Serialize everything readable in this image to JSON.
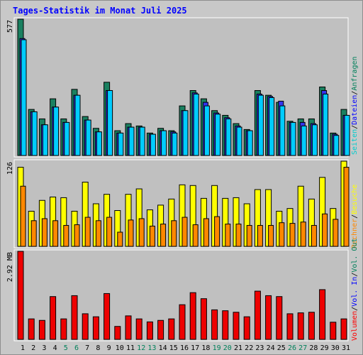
{
  "chart_data": [
    {
      "type": "bar",
      "title": "Tages-Statistik im Monat Juli 2025",
      "x": [
        "1",
        "2",
        "3",
        "4",
        "5",
        "6",
        "7",
        "8",
        "9",
        "10",
        "11",
        "12",
        "13",
        "14",
        "15",
        "16",
        "17",
        "18",
        "19",
        "20",
        "21",
        "22",
        "23",
        "24",
        "25",
        "26",
        "27",
        "28",
        "29",
        "30",
        "31"
      ],
      "weekend_days": [
        "5",
        "6",
        "12",
        "13",
        "19",
        "20",
        "26",
        "27"
      ],
      "ylim": [
        0,
        577
      ],
      "y_tick_label": "577",
      "series": [
        {
          "name": "Anfragen",
          "color": "#1a8060",
          "values": [
            577,
            195,
            155,
            240,
            155,
            280,
            165,
            115,
            310,
            105,
            135,
            125,
            95,
            115,
            105,
            210,
            275,
            240,
            190,
            170,
            135,
            110,
            275,
            255,
            225,
            145,
            155,
            155,
            290,
            95,
            195
          ]
        },
        {
          "name": "Dateien",
          "color": "#3333ee",
          "values": [
            495,
            185,
            130,
            205,
            140,
            255,
            150,
            100,
            275,
            95,
            120,
            120,
            90,
            105,
            100,
            190,
            265,
            225,
            180,
            160,
            125,
            105,
            260,
            250,
            230,
            140,
            140,
            135,
            275,
            90,
            170
          ]
        },
        {
          "name": "Seiten",
          "color": "#00ccff",
          "values": [
            490,
            185,
            130,
            205,
            140,
            255,
            150,
            100,
            275,
            95,
            120,
            120,
            90,
            105,
            95,
            190,
            260,
            210,
            175,
            155,
            120,
            105,
            255,
            245,
            210,
            140,
            125,
            130,
            260,
            85,
            170
          ]
        }
      ]
    },
    {
      "type": "bar",
      "ylim": [
        0,
        126
      ],
      "y_tick_label": "126",
      "series": [
        {
          "name": "Besuche",
          "color": "#ffff00",
          "values": [
            117,
            52,
            68,
            73,
            72,
            52,
            95,
            63,
            77,
            53,
            77,
            85,
            54,
            61,
            70,
            91,
            90,
            71,
            90,
            71,
            72,
            63,
            84,
            84,
            52,
            56,
            89,
            70,
            102,
            56,
            126
          ]
        },
        {
          "name": "Rechner",
          "color": "#ff8800",
          "values": [
            89,
            38,
            41,
            38,
            31,
            32,
            43,
            38,
            43,
            21,
            39,
            41,
            30,
            33,
            38,
            43,
            32,
            41,
            44,
            33,
            33,
            31,
            31,
            31,
            35,
            34,
            36,
            31,
            48,
            40,
            117
          ]
        }
      ]
    },
    {
      "type": "bar",
      "ylim": [
        0,
        2.92
      ],
      "y_tick_label": "2.92 MB",
      "series": [
        {
          "name": "Volumen",
          "color": "#ee0000",
          "values": [
            2.92,
            0.68,
            0.63,
            1.42,
            0.68,
            1.45,
            0.85,
            0.75,
            1.52,
            0.43,
            0.78,
            0.68,
            0.58,
            0.63,
            0.68,
            1.15,
            1.55,
            1.35,
            0.98,
            0.95,
            0.9,
            0.75,
            1.6,
            1.45,
            1.42,
            0.85,
            0.88,
            0.9,
            1.65,
            0.57,
            0.68
          ]
        }
      ]
    }
  ],
  "legend": {
    "separator": "/",
    "top": [
      {
        "text": "Seiten",
        "color": "#00cccc"
      },
      {
        "text": "Dateien",
        "color": "#0000ff"
      },
      {
        "text": "Anfragen",
        "color": "#00805a"
      }
    ],
    "middle": [
      {
        "text": "Rechner",
        "color": "#ff8800"
      },
      {
        "text": "Besuche",
        "color": "#ffff00"
      }
    ],
    "bottom": [
      {
        "text": "Volumen",
        "color": "#ff0000"
      },
      {
        "text": "Vol. In",
        "color": "#0000ff"
      },
      {
        "text": "Vol. Out",
        "color": "#00805a"
      }
    ]
  },
  "colors": {
    "title": "#0000ff",
    "weekday": "#000000",
    "weekend": "#00805a",
    "background": "#c8c8c8",
    "plot": "#c0c0c0"
  }
}
